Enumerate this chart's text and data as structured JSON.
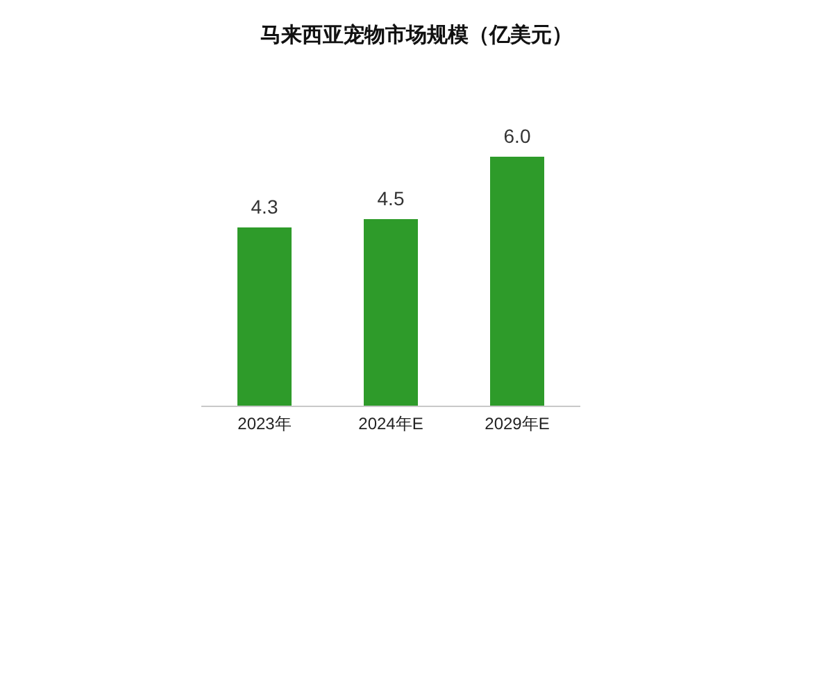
{
  "chart_data": {
    "type": "bar",
    "title": "马来西亚宠物市场规模（亿美元）",
    "categories": [
      "2023年",
      "2024年E",
      "2029年E"
    ],
    "values": [
      4.3,
      4.5,
      6.0
    ],
    "value_labels": [
      "4.3",
      "4.5",
      "6.0"
    ],
    "color": "#2e9b2a",
    "grid": false,
    "legend": false
  }
}
